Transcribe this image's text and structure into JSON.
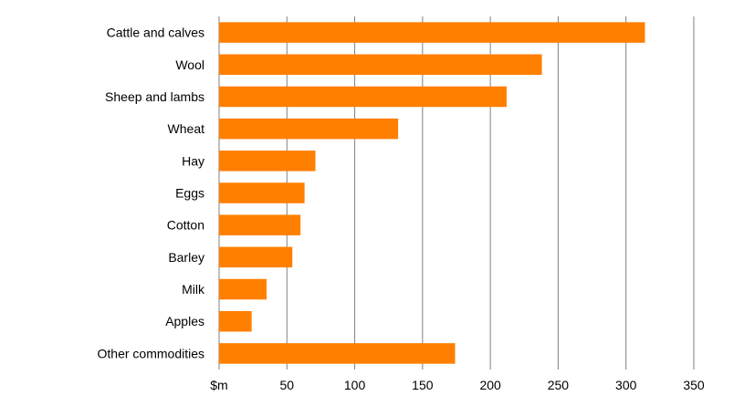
{
  "chart_data": {
    "type": "bar",
    "orientation": "horizontal",
    "title": "",
    "xlabel": "",
    "ylabel": "",
    "categories": [
      "Cattle and calves",
      "Wool",
      "Sheep and lambs",
      "Wheat",
      "Hay",
      "Eggs",
      "Cotton",
      "Barley",
      "Milk",
      "Apples",
      "Other commodities"
    ],
    "values": [
      314,
      238,
      212,
      132,
      71,
      63,
      60,
      54,
      35,
      24,
      174
    ],
    "xlim": [
      0,
      350
    ],
    "xticks": [
      0,
      50,
      100,
      150,
      200,
      250,
      300,
      350
    ],
    "xtick_labels": [
      "$m",
      "50",
      "100",
      "150",
      "200",
      "250",
      "300",
      "350"
    ],
    "grid": "vertical",
    "legend": "none",
    "bar_color": "#ff7f00",
    "grid_color": "#808080"
  }
}
